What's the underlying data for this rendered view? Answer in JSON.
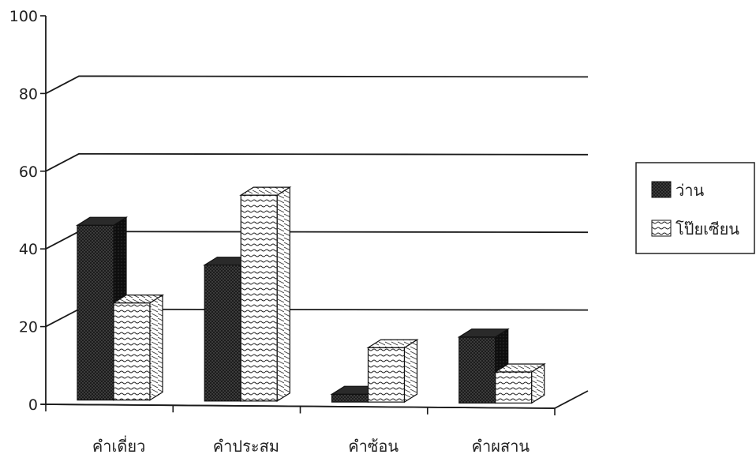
{
  "chart_data": {
    "type": "bar",
    "title": "",
    "xlabel": "",
    "ylabel": "",
    "ylim": [
      0,
      100
    ],
    "yticks": [
      0,
      20,
      40,
      60,
      80,
      100
    ],
    "grid": true,
    "legend_position": "right",
    "categories": [
      "คำเดี่ยว",
      "คำประสม",
      "คำซ้อน",
      "คำผสาน"
    ],
    "series": [
      {
        "name": "ว่าน",
        "values": [
          45,
          35,
          2,
          17
        ],
        "pattern": "dark-dotted",
        "color": "#1a1a1a"
      },
      {
        "name": "โป๊ยเซียน",
        "values": [
          25,
          53,
          14,
          8
        ],
        "pattern": "white-hatched",
        "color": "#ffffff"
      }
    ]
  }
}
